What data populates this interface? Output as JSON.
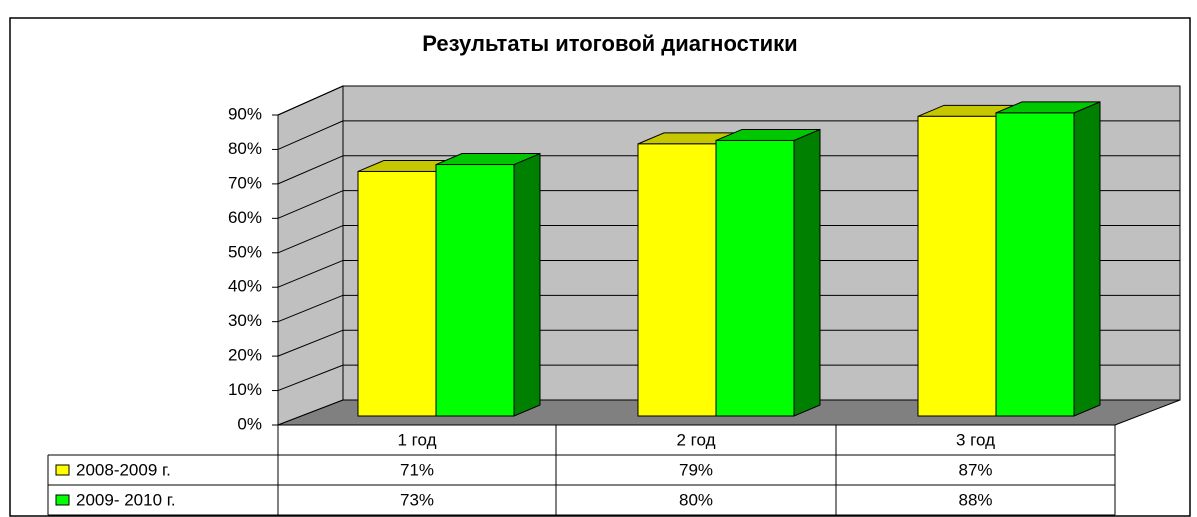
{
  "chart_data": {
    "type": "bar",
    "title": "Результаты итоговой диагностики",
    "categories": [
      "1 год",
      "2 год",
      "3 год"
    ],
    "series": [
      {
        "name": "2008-2009 г.",
        "color": "#ffff00",
        "values": [
          71,
          79,
          87
        ],
        "value_labels": [
          "71%",
          "79%",
          "87%"
        ]
      },
      {
        "name": "2009- 2010 г.",
        "color": "#00ff00",
        "values": [
          73,
          80,
          88
        ],
        "value_labels": [
          "73%",
          "80%",
          "88%"
        ]
      }
    ],
    "ylim": [
      0,
      90
    ],
    "yticks": [
      {
        "value": 0,
        "label": "0%"
      },
      {
        "value": 10,
        "label": "10%"
      },
      {
        "value": 20,
        "label": "20%"
      },
      {
        "value": 30,
        "label": "30%"
      },
      {
        "value": 40,
        "label": "40%"
      },
      {
        "value": 50,
        "label": "50%"
      },
      {
        "value": 60,
        "label": "60%"
      },
      {
        "value": 70,
        "label": "70%"
      },
      {
        "value": 80,
        "label": "80%"
      },
      {
        "value": 90,
        "label": "90%"
      }
    ],
    "grid": true
  }
}
